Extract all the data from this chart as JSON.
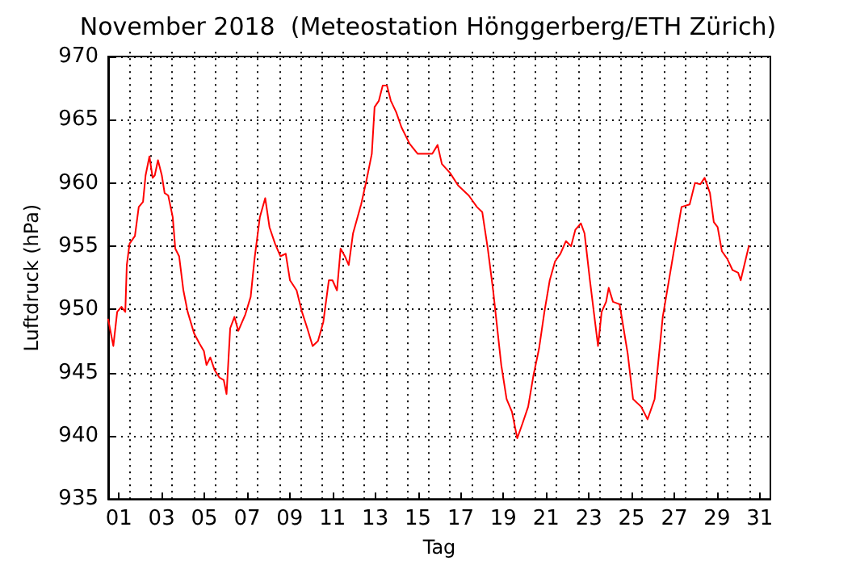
{
  "chart_data": {
    "type": "line",
    "title": "November 2018  (Meteostation Hönggerberg/ETH Zürich)",
    "xlabel": "Tag",
    "ylabel": "Luftdruck (hPa)",
    "xlim": [
      0,
      31
    ],
    "ylim": [
      935,
      970
    ],
    "xticks": [
      {
        "value": 0.5,
        "label": "01"
      },
      {
        "value": 2.5,
        "label": "03"
      },
      {
        "value": 4.5,
        "label": "05"
      },
      {
        "value": 6.5,
        "label": "07"
      },
      {
        "value": 8.5,
        "label": "09"
      },
      {
        "value": 10.5,
        "label": "11"
      },
      {
        "value": 12.5,
        "label": "13"
      },
      {
        "value": 14.5,
        "label": "15"
      },
      {
        "value": 16.5,
        "label": "17"
      },
      {
        "value": 18.5,
        "label": "19"
      },
      {
        "value": 20.5,
        "label": "21"
      },
      {
        "value": 22.5,
        "label": "23"
      },
      {
        "value": 24.5,
        "label": "25"
      },
      {
        "value": 26.5,
        "label": "27"
      },
      {
        "value": 28.5,
        "label": "29"
      },
      {
        "value": 30.5,
        "label": "31"
      },
      {
        "value": 1,
        "label": null
      },
      {
        "value": 2,
        "label": null
      },
      {
        "value": 3,
        "label": null
      },
      {
        "value": 4,
        "label": null
      },
      {
        "value": 5,
        "label": null
      },
      {
        "value": 6,
        "label": null
      },
      {
        "value": 7,
        "label": null
      },
      {
        "value": 8,
        "label": null
      },
      {
        "value": 9,
        "label": null
      },
      {
        "value": 10,
        "label": null
      },
      {
        "value": 11,
        "label": null
      },
      {
        "value": 12,
        "label": null
      },
      {
        "value": 13,
        "label": null
      },
      {
        "value": 14,
        "label": null
      },
      {
        "value": 15,
        "label": null
      },
      {
        "value": 16,
        "label": null
      },
      {
        "value": 17,
        "label": null
      },
      {
        "value": 18,
        "label": null
      },
      {
        "value": 19,
        "label": null
      },
      {
        "value": 20,
        "label": null
      },
      {
        "value": 21,
        "label": null
      },
      {
        "value": 22,
        "label": null
      },
      {
        "value": 23,
        "label": null
      },
      {
        "value": 24,
        "label": null
      },
      {
        "value": 25,
        "label": null
      },
      {
        "value": 26,
        "label": null
      },
      {
        "value": 27,
        "label": null
      },
      {
        "value": 28,
        "label": null
      },
      {
        "value": 29,
        "label": null
      },
      {
        "value": 30,
        "label": null
      }
    ],
    "yticks": [
      935,
      940,
      945,
      950,
      955,
      960,
      965,
      970
    ],
    "grid": true,
    "marker": "none",
    "line_style": "solid",
    "series": [
      {
        "color": "#ff0000",
        "x": [
          0,
          0.24,
          0.42,
          0.62,
          0.8,
          0.87,
          1.0,
          1.25,
          1.43,
          1.63,
          1.75,
          1.93,
          2.08,
          2.18,
          2.33,
          2.51,
          2.64,
          2.81,
          3.02,
          3.14,
          3.32,
          3.52,
          3.72,
          4.02,
          4.27,
          4.48,
          4.6,
          4.78,
          4.98,
          5.21,
          5.41,
          5.54,
          5.71,
          5.91,
          6.09,
          6.42,
          6.67,
          6.85,
          7.1,
          7.35,
          7.55,
          7.81,
          8.06,
          8.31,
          8.51,
          8.82,
          9.07,
          9.32,
          9.57,
          9.82,
          10.07,
          10.33,
          10.5,
          10.71,
          10.88,
          11.08,
          11.26,
          11.46,
          11.84,
          12.09,
          12.34,
          12.47,
          12.67,
          12.85,
          13.05,
          13.23,
          13.48,
          13.73,
          14.11,
          14.49,
          14.87,
          15.17,
          15.42,
          15.62,
          16.0,
          16.38,
          16.88,
          17.26,
          17.51,
          17.77,
          18.02,
          18.4,
          18.65,
          18.9,
          19.15,
          19.4,
          19.66,
          19.91,
          20.17,
          20.42,
          20.67,
          20.92,
          21.17,
          21.43,
          21.67,
          21.87,
          22.13,
          22.3,
          22.55,
          22.93,
          23.1,
          23.31,
          23.43,
          23.63,
          23.94,
          24.32,
          24.57,
          24.95,
          25.25,
          25.58,
          25.96,
          26.46,
          26.84,
          27.22,
          27.47,
          27.72,
          27.92,
          28.17,
          28.35,
          28.53,
          28.73,
          28.98,
          29.23,
          29.49,
          29.61,
          29.99
        ],
        "values": [
          949.2,
          947.1,
          949.8,
          950.2,
          949.8,
          953.5,
          955.2,
          955.8,
          958.1,
          958.5,
          960.6,
          962.1,
          960.4,
          960.6,
          961.8,
          960.6,
          959.2,
          959.0,
          957.3,
          954.8,
          954.2,
          951.5,
          949.8,
          948.1,
          947.3,
          946.7,
          945.6,
          946.2,
          945.2,
          944.6,
          944.4,
          943.3,
          948.5,
          949.4,
          948.3,
          949.6,
          951.0,
          954.0,
          957.3,
          958.8,
          956.5,
          955.2,
          954.2,
          954.4,
          952.3,
          951.5,
          949.8,
          948.5,
          947.1,
          947.5,
          949.0,
          952.3,
          952.3,
          951.5,
          954.8,
          954.2,
          953.5,
          956.0,
          958.3,
          960.2,
          962.3,
          966.0,
          966.5,
          967.7,
          967.7,
          966.5,
          965.6,
          964.4,
          963.1,
          962.3,
          962.3,
          962.3,
          963.0,
          961.5,
          960.8,
          959.8,
          959.0,
          958.1,
          957.7,
          954.8,
          951.5,
          945.6,
          942.9,
          941.9,
          939.8,
          941.0,
          942.3,
          944.8,
          946.9,
          949.8,
          952.3,
          953.8,
          954.4,
          955.4,
          955.0,
          956.3,
          956.8,
          956.0,
          952.3,
          947.1,
          949.8,
          950.6,
          951.7,
          950.6,
          950.4,
          946.5,
          942.9,
          942.3,
          941.3,
          942.9,
          949.4,
          954.4,
          958.1,
          958.3,
          960.0,
          959.9,
          960.4,
          959.2,
          956.9,
          956.5,
          954.6,
          954.0,
          953.1,
          952.9,
          952.3,
          955.0
        ]
      }
    ]
  }
}
